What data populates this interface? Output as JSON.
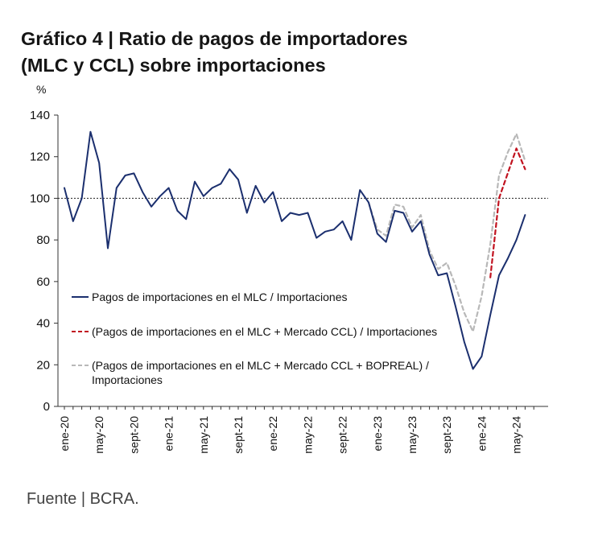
{
  "title_line1": "Gráfico 4 | Ratio de pagos de importadores",
  "title_line2": "(MLC y CCL) sobre importaciones",
  "source": "Fuente | BCRA.",
  "chart_data": {
    "type": "line",
    "unit": "%",
    "ylim": [
      0,
      140
    ],
    "yticks": [
      0,
      20,
      40,
      60,
      80,
      100,
      120,
      140
    ],
    "xlim": [
      0,
      55
    ],
    "xticks": [
      {
        "label": "ene-20",
        "x": 0
      },
      {
        "label": "may-20",
        "x": 4
      },
      {
        "label": "sept-20",
        "x": 8
      },
      {
        "label": "ene-21",
        "x": 12
      },
      {
        "label": "may-21",
        "x": 16
      },
      {
        "label": "sept-21",
        "x": 20
      },
      {
        "label": "ene-22",
        "x": 24
      },
      {
        "label": "may-22",
        "x": 28
      },
      {
        "label": "sept-22",
        "x": 32
      },
      {
        "label": "ene-23",
        "x": 36
      },
      {
        "label": "may-23",
        "x": 40
      },
      {
        "label": "sept-23",
        "x": 44
      },
      {
        "label": "ene-24",
        "x": 48
      },
      {
        "label": "may-24",
        "x": 52
      }
    ],
    "reference_line": 100,
    "series": [
      {
        "name": "Pagos de importaciones en el MLC / Importaciones",
        "color": "#1b2f6e",
        "style": "solid",
        "x": [
          0,
          1,
          2,
          3,
          4,
          5,
          6,
          7,
          8,
          9,
          10,
          11,
          12,
          13,
          14,
          15,
          16,
          17,
          18,
          19,
          20,
          21,
          22,
          23,
          24,
          25,
          26,
          27,
          28,
          29,
          30,
          31,
          32,
          33,
          34,
          35,
          36,
          37,
          38,
          39,
          40,
          41,
          42,
          43,
          44,
          45,
          46,
          47,
          48,
          49,
          50,
          51,
          52,
          53
        ],
        "values": [
          105,
          89,
          100,
          132,
          117,
          76,
          105,
          111,
          112,
          103,
          96,
          101,
          105,
          94,
          90,
          108,
          101,
          105,
          107,
          114,
          109,
          93,
          106,
          98,
          103,
          89,
          93,
          92,
          93,
          81,
          84,
          85,
          89,
          80,
          104,
          98,
          83,
          79,
          94,
          93,
          84,
          89,
          73,
          63,
          64,
          48,
          31,
          18,
          24,
          44,
          63,
          71,
          80,
          92
        ]
      },
      {
        "name": "(Pagos de importaciones en el MLC + Mercado CCL) / Importaciones",
        "color": "#c1121f",
        "style": "dashed",
        "x": [
          49,
          50,
          51,
          52,
          53
        ],
        "values": [
          62,
          100,
          112,
          124,
          114
        ]
      },
      {
        "name": "(Pagos de importaciones en el MLC + Mercado CCL + BOPREAL) / Importaciones",
        "color": "#b8b8b8",
        "style": "dashed",
        "x": [
          35,
          36,
          37,
          38,
          39,
          40,
          41,
          42,
          43,
          44,
          45,
          46,
          47,
          48,
          49,
          50,
          51,
          52,
          53
        ],
        "values": [
          98,
          85,
          82,
          97,
          96,
          86,
          92,
          75,
          66,
          69,
          58,
          45,
          36,
          53,
          78,
          111,
          122,
          131,
          118
        ]
      }
    ]
  }
}
